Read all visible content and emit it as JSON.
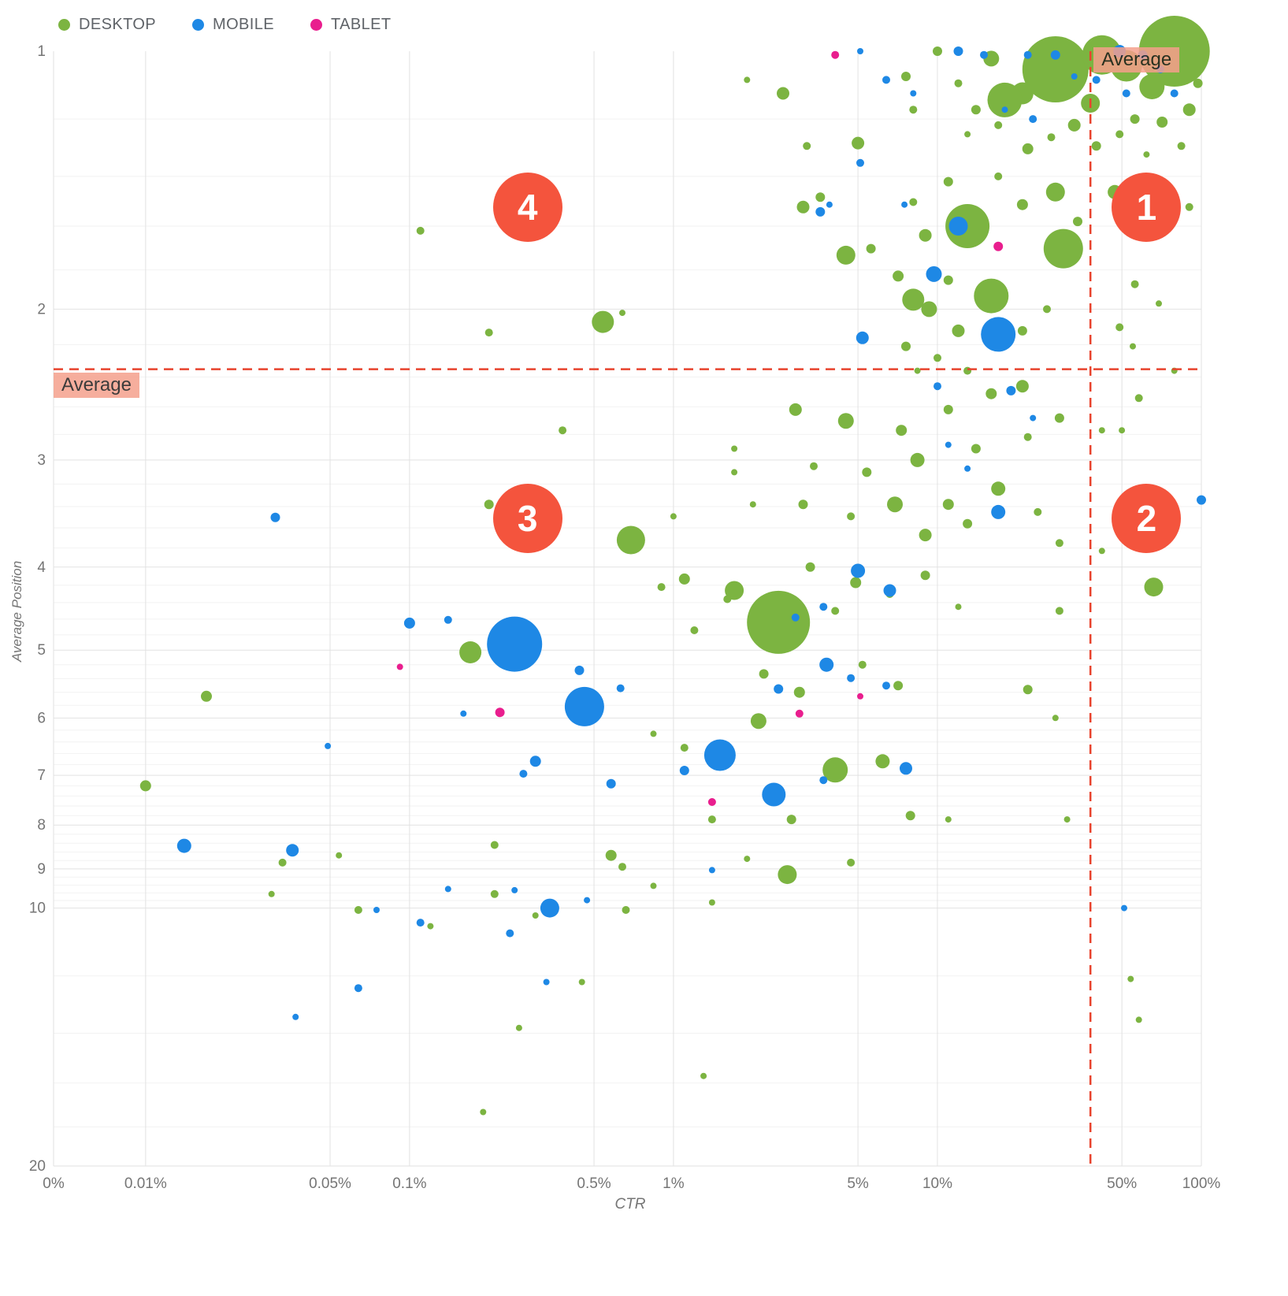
{
  "legend": {
    "items": [
      {
        "id": "desktop",
        "label": "DESKTOP",
        "color": "#7cb441"
      },
      {
        "id": "mobile",
        "label": "MOBILE",
        "color": "#1e88e5"
      },
      {
        "id": "tablet",
        "label": "TABLET",
        "color": "#e91e8e"
      }
    ]
  },
  "chart_data": {
    "type": "scatter",
    "title": "",
    "xlabel": "CTR",
    "ylabel": "Average Position",
    "x_scale": "log",
    "y_scale": "log",
    "y_inverted": true,
    "x_domain": [
      0.00448,
      100
    ],
    "y_domain": [
      1,
      20
    ],
    "x_ticks": [
      {
        "value": null,
        "label": "0%"
      },
      {
        "value": 0.01,
        "label": "0.01%"
      },
      {
        "value": 0.05,
        "label": "0.05%"
      },
      {
        "value": 0.1,
        "label": "0.1%"
      },
      {
        "value": 0.5,
        "label": "0.5%"
      },
      {
        "value": 1,
        "label": "1%"
      },
      {
        "value": 5,
        "label": "5%"
      },
      {
        "value": 10,
        "label": "10%"
      },
      {
        "value": 50,
        "label": "50%"
      },
      {
        "value": 100,
        "label": "100%"
      }
    ],
    "y_ticks": [
      1,
      2,
      3,
      4,
      5,
      6,
      7,
      8,
      9,
      10,
      20
    ],
    "averages": {
      "label": "Average",
      "ctr": 38,
      "position": 2.35
    },
    "quadrants": [
      {
        "label": "1",
        "ctr": 62,
        "position": 1.52
      },
      {
        "label": "2",
        "ctr": 62,
        "position": 3.51
      },
      {
        "label": "3",
        "ctr": 0.28,
        "position": 3.51
      },
      {
        "label": "4",
        "ctr": 0.28,
        "position": 1.52
      }
    ],
    "colors": {
      "desktop": "#7cb441",
      "mobile": "#1e88e5",
      "tablet": "#e91e8e",
      "average_line": "#e8432d",
      "quadrant": "#f4543d",
      "average_label_bg": "#f5a08c",
      "grid_major": "#e2e2e2",
      "grid_minor": "#f2f2f2",
      "tick_text": "#757575"
    },
    "point_format": [
      "ctr_percent",
      "avg_position",
      "radius_px"
    ],
    "series": [
      {
        "name": "DESKTOP",
        "color": "#7cb441",
        "points": [
          [
            79,
            1.0,
            45
          ],
          [
            28,
            1.05,
            42
          ],
          [
            42,
            1.01,
            25
          ],
          [
            52,
            1.04,
            20
          ],
          [
            65,
            1.1,
            16
          ],
          [
            21,
            1.12,
            14
          ],
          [
            38,
            1.15,
            12
          ],
          [
            16,
            1.02,
            10
          ],
          [
            18,
            1.14,
            22
          ],
          [
            90,
            1.17,
            8
          ],
          [
            71,
            1.21,
            7
          ],
          [
            56,
            1.2,
            6
          ],
          [
            49,
            1.25,
            5
          ],
          [
            40,
            1.29,
            6
          ],
          [
            33,
            1.22,
            8
          ],
          [
            27,
            1.26,
            5
          ],
          [
            22,
            1.3,
            7
          ],
          [
            17,
            1.22,
            5
          ],
          [
            14,
            1.17,
            6
          ],
          [
            12,
            1.09,
            5
          ],
          [
            10,
            1.0,
            6
          ],
          [
            13,
            1.25,
            4
          ],
          [
            84,
            1.29,
            5
          ],
          [
            97,
            1.09,
            6
          ],
          [
            62,
            1.32,
            4
          ],
          [
            13,
            1.6,
            28
          ],
          [
            30,
            1.7,
            25
          ],
          [
            16,
            1.93,
            22
          ],
          [
            28,
            1.46,
            12
          ],
          [
            47,
            1.46,
            9
          ],
          [
            21,
            1.51,
            7
          ],
          [
            11,
            1.42,
            6
          ],
          [
            8.1,
            1.5,
            5
          ],
          [
            17,
            1.4,
            5
          ],
          [
            34,
            1.58,
            6
          ],
          [
            56,
            1.61,
            5
          ],
          [
            90,
            1.52,
            5
          ],
          [
            9,
            1.64,
            8
          ],
          [
            5.6,
            1.7,
            6
          ],
          [
            4.5,
            1.73,
            12
          ],
          [
            7.1,
            1.83,
            7
          ],
          [
            11,
            1.85,
            6
          ],
          [
            8.1,
            1.95,
            14
          ],
          [
            9.3,
            2.0,
            10
          ],
          [
            12,
            2.12,
            8
          ],
          [
            21,
            2.12,
            6
          ],
          [
            26,
            2.0,
            5
          ],
          [
            56,
            1.87,
            5
          ],
          [
            69,
            1.97,
            4
          ],
          [
            49,
            2.1,
            5
          ],
          [
            2.9,
            2.62,
            8
          ],
          [
            4.5,
            2.7,
            10
          ],
          [
            7.3,
            2.77,
            7
          ],
          [
            11,
            2.62,
            6
          ],
          [
            16,
            2.51,
            7
          ],
          [
            21,
            2.46,
            8
          ],
          [
            29,
            2.68,
            6
          ],
          [
            42,
            2.77,
            4
          ],
          [
            22,
            2.82,
            5
          ],
          [
            14,
            2.91,
            6
          ],
          [
            0.38,
            2.77,
            5
          ],
          [
            1.7,
            2.91,
            4
          ],
          [
            8.4,
            3.0,
            9
          ],
          [
            5.4,
            3.1,
            6
          ],
          [
            3.4,
            3.05,
            5
          ],
          [
            6.9,
            3.38,
            10
          ],
          [
            11,
            3.38,
            7
          ],
          [
            17,
            3.24,
            9
          ],
          [
            13,
            3.56,
            6
          ],
          [
            9,
            3.67,
            8
          ],
          [
            4.7,
            3.49,
            5
          ],
          [
            3.1,
            3.38,
            6
          ],
          [
            2,
            3.38,
            4
          ],
          [
            0.69,
            3.72,
            18
          ],
          [
            0.2,
            3.38,
            6
          ],
          [
            24,
            3.45,
            5
          ],
          [
            29,
            3.75,
            5
          ],
          [
            42,
            3.83,
            4
          ],
          [
            2.5,
            4.64,
            40
          ],
          [
            1.7,
            4.26,
            12
          ],
          [
            1.1,
            4.13,
            7
          ],
          [
            0.9,
            4.22,
            5
          ],
          [
            3.3,
            4.0,
            6
          ],
          [
            4.9,
            4.17,
            7
          ],
          [
            6.6,
            4.3,
            5
          ],
          [
            9,
            4.09,
            6
          ],
          [
            4.1,
            4.5,
            5
          ],
          [
            12,
            4.45,
            4
          ],
          [
            66,
            4.22,
            12
          ],
          [
            29,
            4.5,
            5
          ],
          [
            1.2,
            4.74,
            5
          ],
          [
            1.6,
            4.36,
            5
          ],
          [
            0.17,
            5.03,
            14
          ],
          [
            2.2,
            5.33,
            6
          ],
          [
            3,
            5.6,
            7
          ],
          [
            5.2,
            5.2,
            5
          ],
          [
            7.1,
            5.5,
            6
          ],
          [
            2.1,
            6.05,
            10
          ],
          [
            4.1,
            6.9,
            16
          ],
          [
            1.1,
            6.5,
            5
          ],
          [
            0.84,
            6.26,
            4
          ],
          [
            0.017,
            5.66,
            7
          ],
          [
            6.2,
            6.74,
            9
          ],
          [
            22,
            5.56,
            6
          ],
          [
            28,
            6.0,
            4
          ],
          [
            1.4,
            7.88,
            5
          ],
          [
            2.8,
            7.88,
            6
          ],
          [
            1.9,
            8.76,
            4
          ],
          [
            2.7,
            9.14,
            12
          ],
          [
            7.9,
            7.8,
            6
          ],
          [
            11,
            7.88,
            4
          ],
          [
            0.01,
            7.2,
            7
          ],
          [
            0.054,
            8.68,
            4
          ],
          [
            0.033,
            8.85,
            5
          ],
          [
            0.21,
            8.44,
            5
          ],
          [
            0.58,
            8.68,
            7
          ],
          [
            0.64,
            8.95,
            5
          ],
          [
            4.7,
            8.85,
            5
          ],
          [
            31,
            7.88,
            4
          ],
          [
            0.21,
            9.63,
            5
          ],
          [
            0.3,
            10.2,
            4
          ],
          [
            0.84,
            9.42,
            4
          ],
          [
            0.03,
            9.63,
            4
          ],
          [
            0.064,
            10.05,
            5
          ],
          [
            0.12,
            10.5,
            4
          ],
          [
            0.66,
            10.05,
            5
          ],
          [
            1.4,
            9.85,
            4
          ],
          [
            0.45,
            12.2,
            4
          ],
          [
            0.26,
            13.8,
            4
          ],
          [
            1.3,
            15.7,
            4
          ],
          [
            0.19,
            17.3,
            4
          ],
          [
            58,
            13.5,
            4
          ],
          [
            54,
            12.1,
            4
          ],
          [
            2.6,
            1.12,
            8
          ],
          [
            3.2,
            1.29,
            5
          ],
          [
            5,
            1.28,
            8
          ],
          [
            7.6,
            1.07,
            6
          ],
          [
            8.1,
            1.17,
            5
          ],
          [
            3.6,
            1.48,
            6
          ],
          [
            3.1,
            1.52,
            8
          ],
          [
            1.9,
            1.08,
            4
          ],
          [
            0.11,
            1.62,
            5
          ],
          [
            0.2,
            2.13,
            5
          ],
          [
            0.64,
            2.02,
            4
          ],
          [
            0.54,
            2.07,
            14
          ],
          [
            55,
            2.21,
            4
          ],
          [
            79,
            2.36,
            4
          ],
          [
            58,
            2.54,
            5
          ],
          [
            50,
            2.77,
            4
          ],
          [
            7.6,
            2.21,
            6
          ],
          [
            10,
            2.28,
            5
          ],
          [
            8.4,
            2.36,
            4
          ],
          [
            13,
            2.36,
            5
          ],
          [
            1,
            3.49,
            4
          ],
          [
            1.7,
            3.1,
            4
          ]
        ]
      },
      {
        "name": "MOBILE",
        "color": "#1e88e5",
        "points": [
          [
            49,
            1.0,
            8
          ],
          [
            60,
            1.01,
            6
          ],
          [
            70,
            1.05,
            5
          ],
          [
            40,
            1.08,
            5
          ],
          [
            28,
            1.01,
            6
          ],
          [
            22,
            1.01,
            5
          ],
          [
            33,
            1.07,
            4
          ],
          [
            79,
            1.12,
            5
          ],
          [
            12,
            1.0,
            6
          ],
          [
            15,
            1.01,
            5
          ],
          [
            6.4,
            1.08,
            5
          ],
          [
            5.1,
            1.0,
            4
          ],
          [
            8.1,
            1.12,
            4
          ],
          [
            23,
            1.2,
            5
          ],
          [
            18,
            1.17,
            4
          ],
          [
            52,
            1.12,
            5
          ],
          [
            5.1,
            1.35,
            5
          ],
          [
            3.6,
            1.54,
            6
          ],
          [
            3.9,
            1.51,
            4
          ],
          [
            7.5,
            1.51,
            4
          ],
          [
            12,
            1.6,
            12
          ],
          [
            9.7,
            1.82,
            10
          ],
          [
            17,
            2.14,
            22
          ],
          [
            5.2,
            2.16,
            8
          ],
          [
            19,
            2.49,
            6
          ],
          [
            23,
            2.68,
            4
          ],
          [
            11,
            2.88,
            4
          ],
          [
            13,
            3.07,
            4
          ],
          [
            17,
            3.45,
            9
          ],
          [
            100,
            3.34,
            6
          ],
          [
            10,
            2.46,
            5
          ],
          [
            5,
            4.04,
            9
          ],
          [
            6.6,
            4.26,
            8
          ],
          [
            3.7,
            4.45,
            5
          ],
          [
            2.9,
            4.58,
            5
          ],
          [
            3.8,
            5.2,
            9
          ],
          [
            4.7,
            5.39,
            5
          ],
          [
            2.5,
            5.55,
            6
          ],
          [
            6.4,
            5.5,
            5
          ],
          [
            0.25,
            4.92,
            35
          ],
          [
            0.1,
            4.65,
            7
          ],
          [
            0.14,
            4.61,
            5
          ],
          [
            0.46,
            5.82,
            25
          ],
          [
            0.44,
            5.28,
            6
          ],
          [
            0.63,
            5.54,
            5
          ],
          [
            0.16,
            5.93,
            4
          ],
          [
            0.049,
            6.47,
            4
          ],
          [
            0.3,
            6.74,
            7
          ],
          [
            0.27,
            6.97,
            5
          ],
          [
            0.58,
            7.16,
            6
          ],
          [
            1.1,
            6.91,
            6
          ],
          [
            1.5,
            6.63,
            20
          ],
          [
            2.4,
            7.37,
            15
          ],
          [
            3.7,
            7.09,
            5
          ],
          [
            7.6,
            6.87,
            8
          ],
          [
            0.014,
            8.46,
            9
          ],
          [
            0.036,
            8.56,
            8
          ],
          [
            0.031,
            3.5,
            6
          ],
          [
            1.4,
            9.03,
            4
          ],
          [
            0.14,
            9.5,
            4
          ],
          [
            0.25,
            9.53,
            4
          ],
          [
            0.34,
            10.0,
            12
          ],
          [
            0.47,
            9.79,
            4
          ],
          [
            0.075,
            10.05,
            4
          ],
          [
            0.11,
            10.4,
            5
          ],
          [
            0.24,
            10.7,
            5
          ],
          [
            0.33,
            12.2,
            4
          ],
          [
            0.064,
            12.4,
            5
          ],
          [
            0.037,
            13.4,
            4
          ],
          [
            51,
            10.0,
            4
          ]
        ]
      },
      {
        "name": "TABLET",
        "color": "#e91e8e",
        "points": [
          [
            4.1,
            1.01,
            5
          ],
          [
            17,
            1.69,
            6
          ],
          [
            0.092,
            5.23,
            4
          ],
          [
            0.22,
            5.91,
            6
          ],
          [
            3,
            5.93,
            5
          ],
          [
            5.1,
            5.66,
            4
          ],
          [
            1.4,
            7.52,
            5
          ]
        ]
      }
    ]
  }
}
